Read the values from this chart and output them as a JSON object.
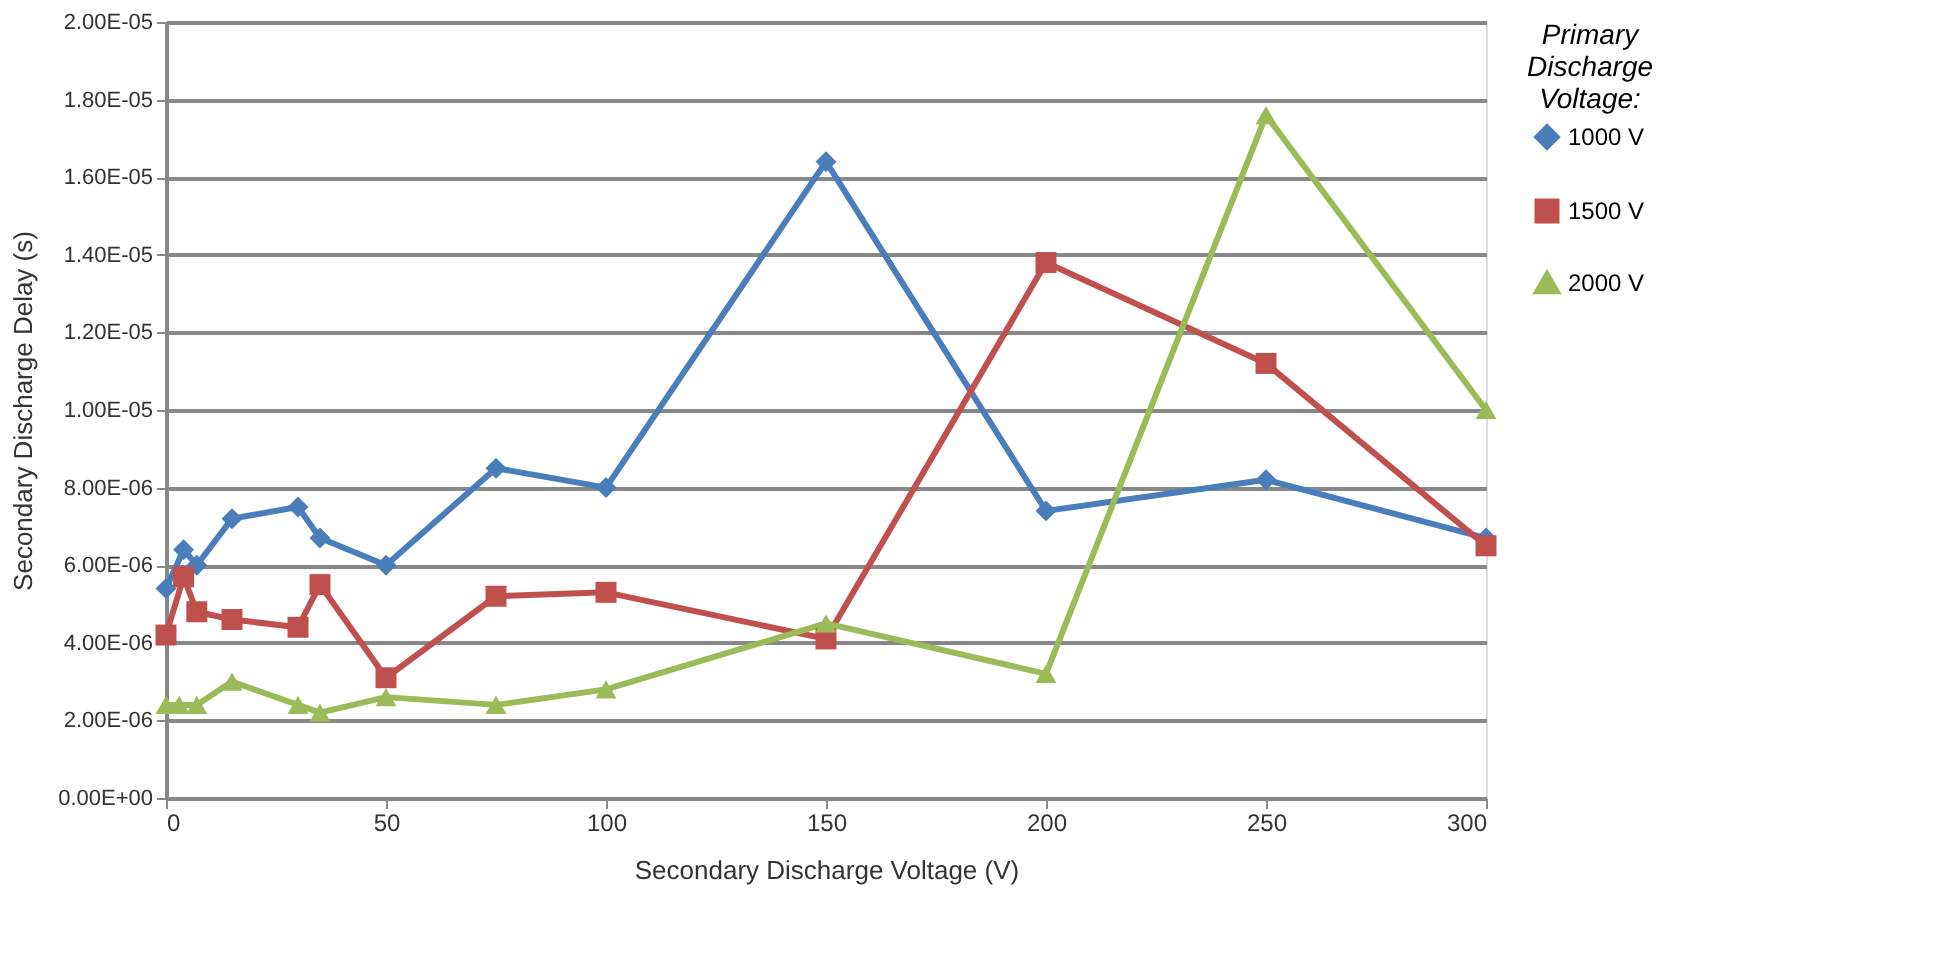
{
  "chart_data": {
    "type": "line",
    "xlabel": "Secondary Discharge Voltage (V)",
    "ylabel": "Secondary Discharge Delay (s)",
    "legend_title": "Primary Discharge Voltage:",
    "legend": "right",
    "grid": "y",
    "xlim": [
      0,
      300
    ],
    "xticks": [
      0,
      50,
      100,
      150,
      200,
      250,
      300
    ],
    "ylim": [
      0,
      2e-05
    ],
    "yticks": [
      {
        "value": 0,
        "label": "0.00E+00"
      },
      {
        "value": 2e-06,
        "label": "2.00E-06"
      },
      {
        "value": 4e-06,
        "label": "4.00E-06"
      },
      {
        "value": 6e-06,
        "label": "6.00E-06"
      },
      {
        "value": 8e-06,
        "label": "8.00E-06"
      },
      {
        "value": 1e-05,
        "label": "1.00E-05"
      },
      {
        "value": 1.2e-05,
        "label": "1.20E-05"
      },
      {
        "value": 1.4e-05,
        "label": "1.40E-05"
      },
      {
        "value": 1.6e-05,
        "label": "1.60E-05"
      },
      {
        "value": 1.8e-05,
        "label": "1.80E-05"
      },
      {
        "value": 2e-05,
        "label": "2.00E-05"
      }
    ],
    "series": [
      {
        "name": "1000 V",
        "color": "#4a7ebb",
        "marker": "diamond",
        "x": [
          0,
          4,
          7,
          15,
          30,
          35,
          50,
          75,
          100,
          150,
          200,
          250,
          300
        ],
        "values": [
          5.4e-06,
          6.4e-06,
          6e-06,
          7.2e-06,
          7.5e-06,
          6.7e-06,
          6e-06,
          8.5e-06,
          8e-06,
          1.64e-05,
          7.4e-06,
          8.2e-06,
          6.7e-06
        ]
      },
      {
        "name": "1500 V",
        "color": "#c0504d",
        "marker": "square",
        "x": [
          0,
          4,
          7,
          15,
          30,
          35,
          50,
          75,
          100,
          150,
          200,
          250,
          300
        ],
        "values": [
          4.2e-06,
          5.7e-06,
          4.8e-06,
          4.6e-06,
          4.4e-06,
          5.5e-06,
          3.1e-06,
          5.2e-06,
          5.3e-06,
          4.1e-06,
          1.38e-05,
          1.12e-05,
          6.5e-06
        ]
      },
      {
        "name": "2000 V",
        "color": "#9bbb59",
        "marker": "triangle",
        "x": [
          0,
          3,
          7,
          15,
          30,
          35,
          50,
          75,
          100,
          150,
          200,
          250,
          300
        ],
        "values": [
          2.4e-06,
          2.4e-06,
          2.4e-06,
          3e-06,
          2.4e-06,
          2.2e-06,
          2.6e-06,
          2.4e-06,
          2.8e-06,
          4.5e-06,
          3.2e-06,
          1.76e-05,
          1e-05
        ]
      }
    ]
  }
}
